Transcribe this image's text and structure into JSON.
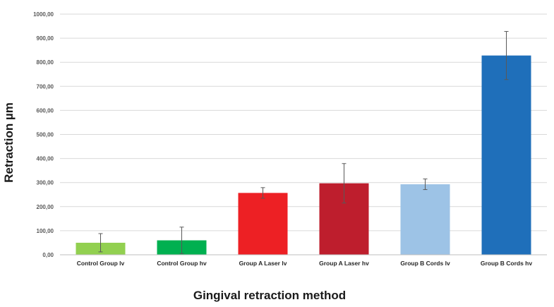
{
  "chart_data": {
    "type": "bar",
    "title": "",
    "xlabel": "Gingival retraction method",
    "ylabel": "Retraction µm",
    "ylim": [
      0,
      1000
    ],
    "yticks": [
      0,
      100,
      200,
      300,
      400,
      500,
      600,
      700,
      800,
      900,
      1000
    ],
    "ytick_labels": [
      "0,00",
      "100,00",
      "200,00",
      "300,00",
      "400,00",
      "500,00",
      "600,00",
      "700,00",
      "800,00",
      "900,00",
      "1000,00"
    ],
    "grid": true,
    "legend": "none",
    "categories": [
      "Control Group lv",
      "Control Group hv",
      "Group A Laser lv",
      "Group A Laser hv",
      "Group B Cords lv",
      "Group B Cords hv"
    ],
    "values": [
      50,
      60,
      257,
      297,
      293,
      828
    ],
    "error": [
      38,
      55,
      22,
      82,
      22,
      100
    ],
    "colors": [
      "#92d050",
      "#00b050",
      "#ed2024",
      "#be1e2d",
      "#9dc3e6",
      "#1f6fba"
    ]
  }
}
